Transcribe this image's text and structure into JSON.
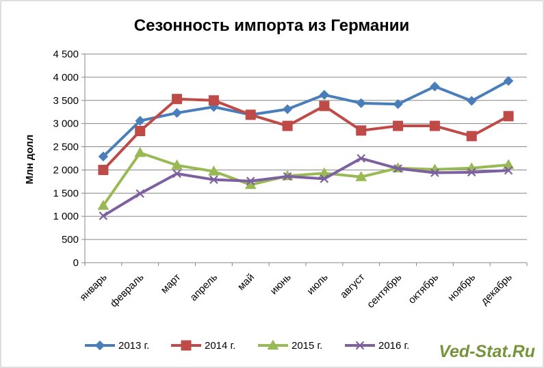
{
  "chart_data": {
    "type": "line",
    "title": "Сезонность импорта из Германии",
    "xlabel": "",
    "ylabel": "Млн долл",
    "ylim": [
      0,
      4500
    ],
    "ytick_step": 500,
    "ytick_labels": [
      "0",
      "500",
      "1 000",
      "1 500",
      "2 000",
      "2 500",
      "3 000",
      "3 500",
      "4 000",
      "4 500"
    ],
    "grid": true,
    "legend_position": "bottom",
    "categories": [
      "январь",
      "февраль",
      "март",
      "апрель",
      "май",
      "июнь",
      "июль",
      "август",
      "сентябрь",
      "октябрь",
      "ноябрь",
      "декабрь"
    ],
    "series": [
      {
        "name": "2013 г.",
        "color": "#4a7ebb",
        "marker": "diamond",
        "values": [
          2290,
          3060,
          3230,
          3360,
          3190,
          3310,
          3620,
          3440,
          3420,
          3800,
          3490,
          3920
        ]
      },
      {
        "name": "2014 г.",
        "color": "#be4b48",
        "marker": "square",
        "values": [
          2000,
          2840,
          3530,
          3500,
          3190,
          2950,
          3380,
          2850,
          2950,
          2950,
          2730,
          3160
        ]
      },
      {
        "name": "2015 г.",
        "color": "#98b954",
        "marker": "triangle",
        "values": [
          1230,
          2370,
          2100,
          1970,
          1680,
          1870,
          1930,
          1850,
          2040,
          2010,
          2040,
          2110
        ]
      },
      {
        "name": "2016 г.",
        "color": "#7d60a0",
        "marker": "x",
        "values": [
          1010,
          1490,
          1920,
          1790,
          1760,
          1860,
          1810,
          2250,
          2030,
          1940,
          1950,
          1990
        ]
      }
    ]
  },
  "watermark": "Ved-Stat.Ru"
}
